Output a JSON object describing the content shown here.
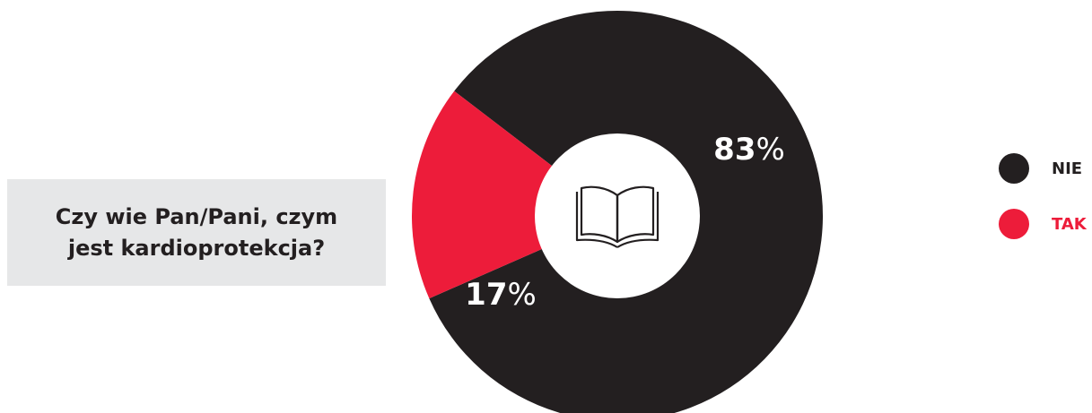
{
  "question": {
    "text": "Czy wie Pan/Pani, czym\njest kardioprotekcja?"
  },
  "center_icon": "open-book-icon",
  "chart_data": {
    "type": "pie",
    "style": "donut",
    "series": [
      {
        "name": "NIE",
        "value": 83,
        "label_number": "83",
        "label_suffix": "%",
        "color": "#231f20"
      },
      {
        "name": "TAK",
        "value": 17,
        "label_number": "17",
        "label_suffix": "%",
        "color": "#ed1c3a"
      }
    ],
    "legend_position": "right"
  },
  "colors": {
    "dark": "#231f20",
    "red": "#ed1c3a",
    "box_background": "#e6e7e8"
  }
}
